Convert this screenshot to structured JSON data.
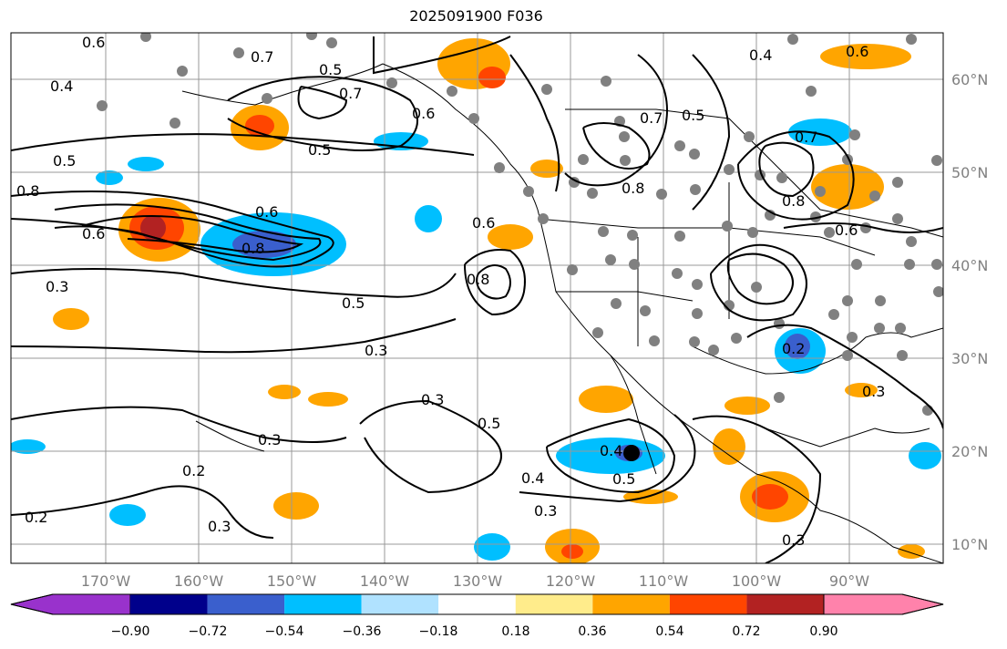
{
  "title": "2025091900 F036",
  "map": {
    "lon_labels": [
      "170°W",
      "160°W",
      "150°W",
      "140°W",
      "130°W",
      "120°W",
      "110°W",
      "100°W",
      "90°W"
    ],
    "lat_labels": [
      "60°N",
      "50°N",
      "40°N",
      "30°N",
      "20°N",
      "10°N"
    ],
    "contour_labels": [
      "0.6",
      "0.7",
      "0.5",
      "0.4",
      "0.8",
      "0.5",
      "0.6",
      "0.8",
      "0.6",
      "0.3",
      "0.5",
      "0.3",
      "0.3",
      "0.3",
      "0.2",
      "0.2",
      "0.3",
      "0.5",
      "0.4",
      "0.5",
      "0.3",
      "0.4",
      "0.5",
      "0.7",
      "0.8",
      "0.6",
      "0.8",
      "0.6",
      "0.8",
      "0.2",
      "0.3",
      "0.3",
      "0.6",
      "0.4",
      "0.7",
      "0.6",
      "0.7",
      "0.5"
    ]
  },
  "colorbar": {
    "ticks": [
      "−0.90",
      "−0.72",
      "−0.54",
      "−0.36",
      "−0.18",
      "0.18",
      "0.36",
      "0.54",
      "0.72",
      "0.90"
    ],
    "colors": [
      "#9932cc",
      "#00008b",
      "#3a5fcd",
      "#00bfff",
      "#b0e2ff",
      "#ffffff",
      "#ffec8b",
      "#ffa500",
      "#ff4500",
      "#b22222",
      "#ff82ab"
    ]
  }
}
